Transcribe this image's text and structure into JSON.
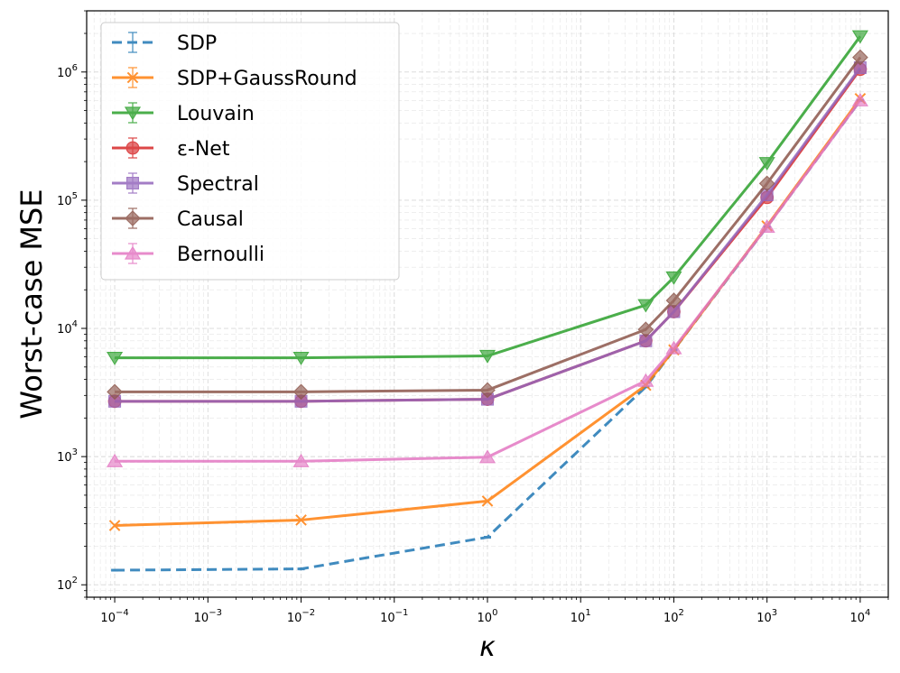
{
  "chart_data": {
    "type": "line",
    "title": "",
    "xlabel": "κ",
    "ylabel": "Worst-case MSE",
    "xscale": "log",
    "yscale": "log",
    "xlim": [
      5e-05,
      20000
    ],
    "ylim": [
      80,
      3000000
    ],
    "grid": true,
    "legend_position": "top-left",
    "x": [
      0.0001,
      0.01,
      1,
      50,
      100,
      1000,
      10000
    ],
    "x_ticks": [
      {
        "value": 0.0001,
        "base": "10",
        "exp": "−4"
      },
      {
        "value": 0.001,
        "base": "10",
        "exp": "−3"
      },
      {
        "value": 0.01,
        "base": "10",
        "exp": "−2"
      },
      {
        "value": 0.1,
        "base": "10",
        "exp": "−1"
      },
      {
        "value": 1,
        "base": "10",
        "exp": "0"
      },
      {
        "value": 10,
        "base": "10",
        "exp": "1"
      },
      {
        "value": 100,
        "base": "10",
        "exp": "2"
      },
      {
        "value": 1000,
        "base": "10",
        "exp": "3"
      },
      {
        "value": 10000,
        "base": "10",
        "exp": "4"
      }
    ],
    "y_ticks": [
      {
        "value": 100,
        "base": "10",
        "exp": "2"
      },
      {
        "value": 1000,
        "base": "10",
        "exp": "3"
      },
      {
        "value": 10000,
        "base": "10",
        "exp": "4"
      },
      {
        "value": 100000,
        "base": "10",
        "exp": "5"
      },
      {
        "value": 1000000,
        "base": "10",
        "exp": "6"
      }
    ],
    "series": [
      {
        "name": "SDP",
        "color": "#1f77b4",
        "dash": true,
        "marker": "tick",
        "values": [
          130,
          133,
          235,
          3500,
          6800,
          62000,
          600000
        ]
      },
      {
        "name": "SDP+GaussRound",
        "color": "#ff7f0e",
        "dash": false,
        "marker": "x",
        "values": [
          290,
          320,
          450,
          3600,
          6800,
          63000,
          620000
        ]
      },
      {
        "name": "Louvain",
        "color": "#2ca02c",
        "dash": false,
        "marker": "triangle-down",
        "values": [
          5900,
          5900,
          6100,
          15200,
          25000,
          195000,
          1900000
        ]
      },
      {
        "name": "ε-Net",
        "color": "#d62728",
        "dash": false,
        "marker": "circle",
        "values": [
          2700,
          2700,
          2800,
          8000,
          13500,
          105000,
          1050000
        ]
      },
      {
        "name": "Spectral",
        "color": "#9467bd",
        "dash": false,
        "marker": "square",
        "values": [
          2700,
          2700,
          2800,
          8000,
          13500,
          110000,
          1080000
        ]
      },
      {
        "name": "Causal",
        "color": "#8c564b",
        "dash": false,
        "marker": "diamond",
        "values": [
          3200,
          3200,
          3300,
          9800,
          16500,
          135000,
          1300000
        ]
      },
      {
        "name": "Bernoulli",
        "color": "#e377c2",
        "dash": false,
        "marker": "triangle-up",
        "values": [
          920,
          920,
          990,
          3900,
          7000,
          62000,
          600000
        ]
      }
    ]
  }
}
